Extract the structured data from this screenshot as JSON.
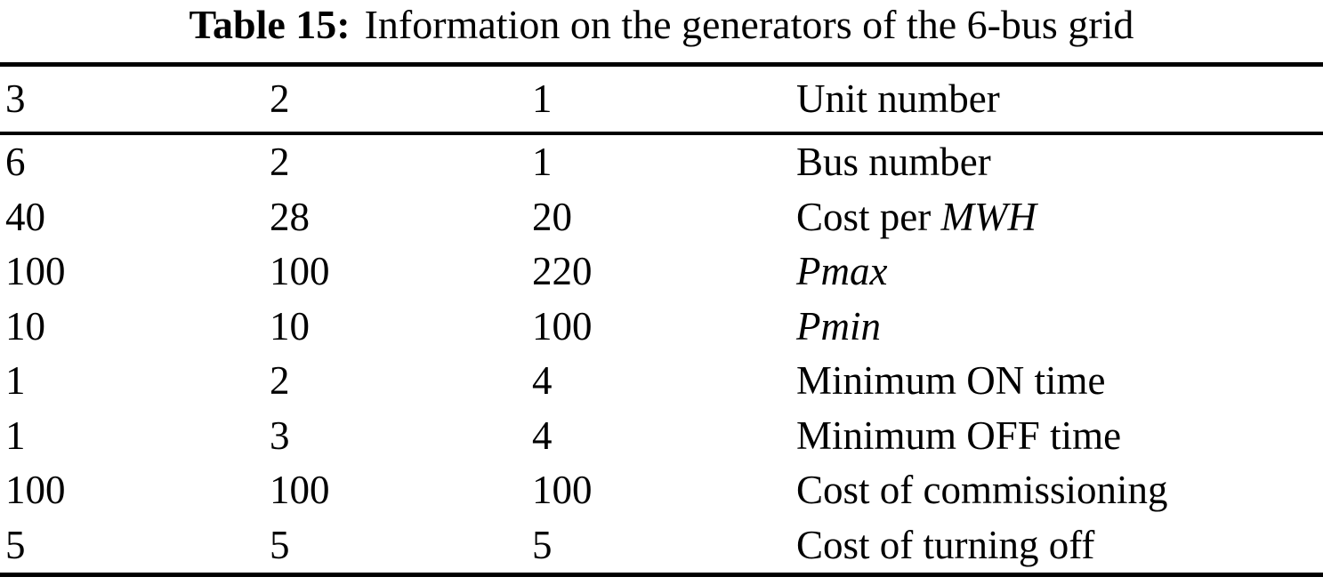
{
  "caption": {
    "label": "Table 15:",
    "text": "Information on the generators of the 6-bus grid"
  },
  "table": {
    "header": {
      "unit3": "3",
      "unit2": "2",
      "unit1": "1",
      "label": "Unit number"
    },
    "rows": [
      {
        "unit3": "6",
        "unit2": "2",
        "unit1": "1",
        "label_roman": "Bus number",
        "label_italic": ""
      },
      {
        "unit3": "40",
        "unit2": "28",
        "unit1": "20",
        "label_roman": "Cost per ",
        "label_italic": "MWH"
      },
      {
        "unit3": "100",
        "unit2": "100",
        "unit1": "220",
        "label_roman": "",
        "label_italic": "Pmax"
      },
      {
        "unit3": "10",
        "unit2": "10",
        "unit1": "100",
        "label_roman": "",
        "label_italic": "Pmin"
      },
      {
        "unit3": "1",
        "unit2": "2",
        "unit1": "4",
        "label_roman": "Minimum ON time",
        "label_italic": ""
      },
      {
        "unit3": "1",
        "unit2": "3",
        "unit1": "4",
        "label_roman": "Minimum OFF time",
        "label_italic": ""
      },
      {
        "unit3": "100",
        "unit2": "100",
        "unit1": "100",
        "label_roman": "Cost of commissioning",
        "label_italic": ""
      },
      {
        "unit3": "5",
        "unit2": "5",
        "unit1": "5",
        "label_roman": "Cost of turning off",
        "label_italic": ""
      }
    ],
    "colors": {
      "text": "#000000",
      "background": "#ffffff",
      "rule": "#000000"
    }
  }
}
